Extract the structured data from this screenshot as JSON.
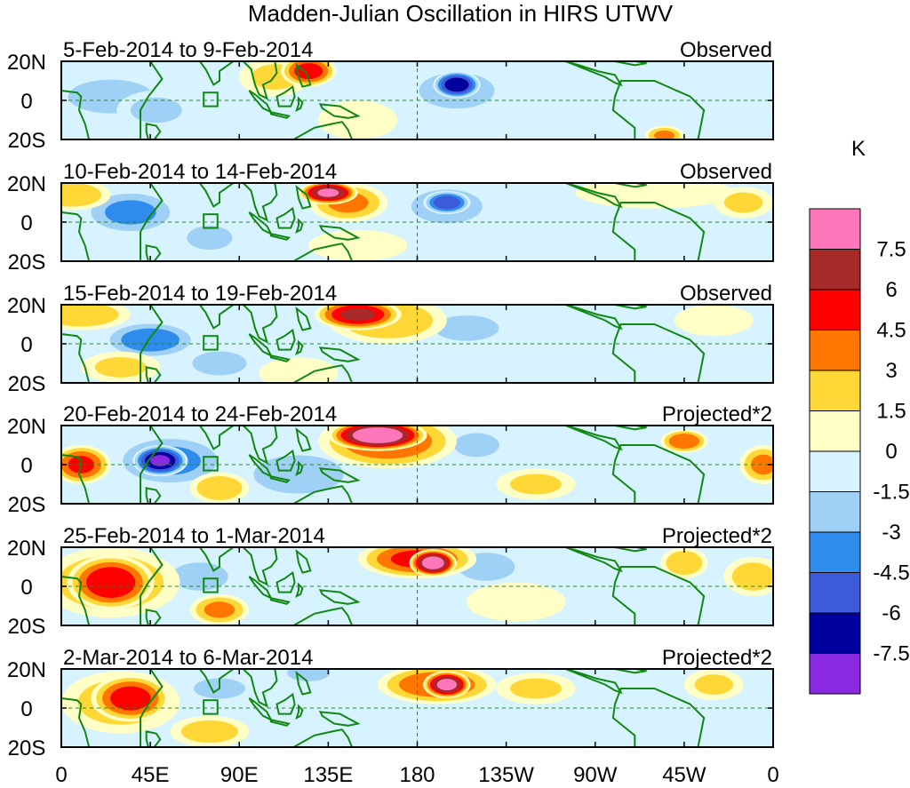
{
  "chart_data": {
    "type": "heatmap",
    "title": "Madden-Julian Oscillation in HIRS UTWV",
    "colorbar": {
      "unit": "K",
      "levels": [
        "7.5",
        "6",
        "4.5",
        "3",
        "1.5",
        "0",
        "-1.5",
        "-3",
        "-4.5",
        "-6",
        "-7.5"
      ],
      "colors": [
        "#ff77bb",
        "#a62a2a",
        "#ff0000",
        "#ff7700",
        "#ffd837",
        "#ffffc6",
        "#d7f3ff",
        "#9fd0f5",
        "#2f8cec",
        "#3d5bd8",
        "#00009e",
        "#8a2be2"
      ]
    },
    "x_ticks": [
      "0",
      "45E",
      "90E",
      "135E",
      "180",
      "135W",
      "90W",
      "45W",
      "0"
    ],
    "y_ticks": [
      "20N",
      "0",
      "20S"
    ],
    "x_range": [
      0,
      360
    ],
    "y_range": [
      -20,
      20
    ],
    "panels": [
      {
        "period": "5-Feb-2014 to 9-Feb-2014",
        "kind": "Observed",
        "blobs": [
          [
            125,
            15,
            14,
            8,
            5.5
          ],
          [
            108,
            12,
            18,
            10,
            2.0
          ],
          [
            200,
            8,
            12,
            7,
            -7.5
          ],
          [
            200,
            5,
            25,
            12,
            -3.0
          ],
          [
            25,
            2,
            30,
            12,
            -2.5
          ],
          [
            48,
            -5,
            20,
            10,
            -2.0
          ],
          [
            150,
            -10,
            20,
            10,
            1.5
          ],
          [
            250,
            0,
            25,
            10,
            -1.0
          ],
          [
            330,
            -10,
            20,
            10,
            -1.0
          ],
          [
            305,
            -18,
            10,
            5,
            3.5
          ]
        ]
      },
      {
        "period": "10-Feb-2014 to 14-Feb-2014",
        "kind": "Observed",
        "blobs": [
          [
            135,
            15,
            15,
            6,
            8.0
          ],
          [
            145,
            10,
            20,
            10,
            3.5
          ],
          [
            195,
            10,
            12,
            6,
            -6.0
          ],
          [
            195,
            8,
            25,
            12,
            -2.5
          ],
          [
            35,
            5,
            25,
            12,
            -3.5
          ],
          [
            75,
            -8,
            15,
            8,
            -3.0
          ],
          [
            110,
            2,
            30,
            10,
            -1.5
          ],
          [
            5,
            14,
            20,
            8,
            3.0
          ],
          [
            300,
            15,
            40,
            8,
            1.5
          ],
          [
            345,
            10,
            15,
            8,
            2.0
          ],
          [
            150,
            -12,
            25,
            8,
            1.5
          ]
        ]
      },
      {
        "period": "15-Feb-2014 to 19-Feb-2014",
        "kind": "Observed",
        "blobs": [
          [
            150,
            15,
            22,
            8,
            6.5
          ],
          [
            165,
            12,
            30,
            12,
            3.0
          ],
          [
            45,
            2,
            25,
            10,
            -4.0
          ],
          [
            80,
            -10,
            18,
            8,
            -3.0
          ],
          [
            205,
            8,
            25,
            10,
            -2.0
          ],
          [
            245,
            5,
            20,
            10,
            -1.5
          ],
          [
            10,
            15,
            25,
            8,
            3.0
          ],
          [
            30,
            -12,
            20,
            8,
            2.0
          ],
          [
            330,
            12,
            20,
            8,
            1.5
          ],
          [
            120,
            -15,
            20,
            8,
            1.5
          ]
        ]
      },
      {
        "period": "20-Feb-2014 to 24-Feb-2014",
        "kind": "Projected*2",
        "blobs": [
          [
            160,
            15,
            25,
            8,
            9.5
          ],
          [
            165,
            12,
            35,
            14,
            4.5
          ],
          [
            50,
            2,
            14,
            8,
            -8.0
          ],
          [
            55,
            2,
            30,
            14,
            -3.5
          ],
          [
            10,
            0,
            15,
            10,
            5.0
          ],
          [
            210,
            10,
            15,
            8,
            -3.0
          ],
          [
            120,
            -5,
            35,
            15,
            -2.0
          ],
          [
            80,
            -12,
            15,
            8,
            3.0
          ],
          [
            315,
            12,
            12,
            6,
            4.5
          ],
          [
            355,
            0,
            12,
            10,
            3.5
          ],
          [
            270,
            5,
            25,
            12,
            -1.5
          ],
          [
            240,
            -10,
            20,
            8,
            2.0
          ]
        ]
      },
      {
        "period": "25-Feb-2014 to 1-Mar-2014",
        "kind": "Projected*2",
        "blobs": [
          [
            188,
            12,
            12,
            7,
            9.0
          ],
          [
            180,
            14,
            30,
            10,
            5.0
          ],
          [
            25,
            2,
            22,
            14,
            6.0
          ],
          [
            25,
            2,
            35,
            18,
            3.0
          ],
          [
            70,
            5,
            20,
            10,
            -2.5
          ],
          [
            80,
            -12,
            15,
            8,
            3.5
          ],
          [
            120,
            -5,
            35,
            14,
            -1.5
          ],
          [
            215,
            10,
            20,
            10,
            -2.5
          ],
          [
            315,
            12,
            12,
            8,
            3.0
          ],
          [
            350,
            5,
            15,
            10,
            2.5
          ],
          [
            230,
            -8,
            25,
            10,
            1.5
          ]
        ]
      },
      {
        "period": "2-Mar-2014 to 6-Mar-2014",
        "kind": "Projected*2",
        "blobs": [
          [
            195,
            12,
            12,
            7,
            8.5
          ],
          [
            190,
            12,
            30,
            10,
            4.5
          ],
          [
            35,
            5,
            20,
            12,
            5.5
          ],
          [
            30,
            3,
            30,
            16,
            2.5
          ],
          [
            75,
            -12,
            20,
            8,
            2.5
          ],
          [
            80,
            10,
            20,
            8,
            -2.0
          ],
          [
            120,
            0,
            30,
            14,
            -1.5
          ],
          [
            125,
            18,
            15,
            6,
            -2.5
          ],
          [
            240,
            10,
            20,
            8,
            2.0
          ],
          [
            290,
            5,
            25,
            10,
            -1.5
          ],
          [
            330,
            12,
            15,
            8,
            2.0
          ]
        ]
      }
    ]
  }
}
